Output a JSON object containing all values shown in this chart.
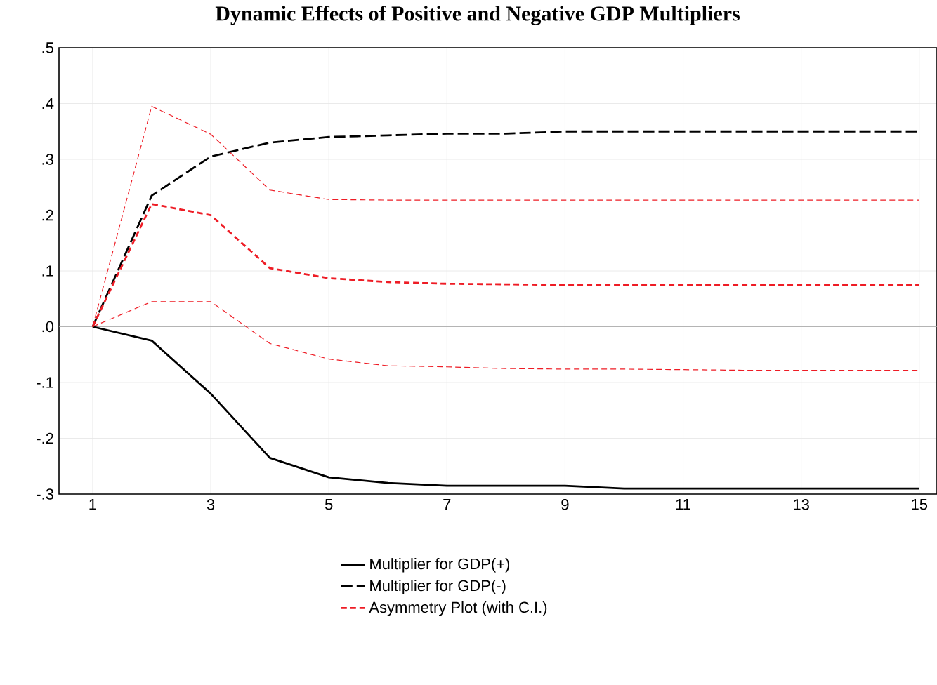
{
  "chart_data": {
    "type": "line",
    "title": "Dynamic Effects of Positive and Negative GDP Multipliers",
    "x": [
      1,
      2,
      3,
      4,
      5,
      6,
      7,
      8,
      9,
      10,
      11,
      12,
      13,
      14,
      15
    ],
    "series": [
      {
        "name": "Multiplier for GDP(+)",
        "color": "#000000",
        "line_style": "solid",
        "values": [
          0,
          -0.025,
          -0.12,
          -0.235,
          -0.27,
          -0.28,
          -0.285,
          -0.285,
          -0.285,
          -0.29,
          -0.29,
          -0.29,
          -0.29,
          -0.29,
          -0.29
        ]
      },
      {
        "name": "Multiplier for GDP(-)",
        "color": "#000000",
        "line_style": "dashed",
        "values": [
          0,
          0.235,
          0.305,
          0.33,
          0.34,
          0.343,
          0.346,
          0.346,
          0.35,
          0.35,
          0.35,
          0.35,
          0.35,
          0.35,
          0.35
        ]
      },
      {
        "name": "Asymmetry Plot (with C.I.)",
        "color": "#ee1c25",
        "line_style": "dashed",
        "values": [
          0,
          0.22,
          0.2,
          0.105,
          0.087,
          0.08,
          0.077,
          0.076,
          0.075,
          0.075,
          0.075,
          0.075,
          0.075,
          0.075,
          0.075
        ]
      },
      {
        "color": "#ee1c25",
        "line_style": "dashed",
        "values": [
          0,
          0.395,
          0.345,
          0.245,
          0.228,
          0.227,
          0.227,
          0.227,
          0.227,
          0.227,
          0.227,
          0.227,
          0.227,
          0.227,
          0.227
        ]
      },
      {
        "color": "#ee1c25",
        "line_style": "dashed",
        "values": [
          0,
          0.045,
          0.045,
          -0.03,
          -0.058,
          -0.07,
          -0.072,
          -0.075,
          -0.076,
          -0.076,
          -0.077,
          -0.078,
          -0.078,
          -0.078,
          -0.078
        ]
      }
    ],
    "xlim": [
      0.43,
      15.3
    ],
    "xticks": [
      1,
      3,
      5,
      7,
      9,
      11,
      13,
      15
    ],
    "ylim": [
      -0.3,
      0.5
    ],
    "yticks": [
      {
        "value": 0.5,
        "label": ".5"
      },
      {
        "value": 0.4,
        "label": ".4"
      },
      {
        "value": 0.3,
        "label": ".3"
      },
      {
        "value": 0.2,
        "label": ".2"
      },
      {
        "value": 0.1,
        "label": ".1"
      },
      {
        "value": 0,
        "label": ".0"
      },
      {
        "value": -0.1,
        "label": "-.1"
      },
      {
        "value": -0.2,
        "label": "-.2"
      },
      {
        "value": -0.3,
        "label": "-.3"
      }
    ],
    "grid": true,
    "legend": "bottom"
  }
}
